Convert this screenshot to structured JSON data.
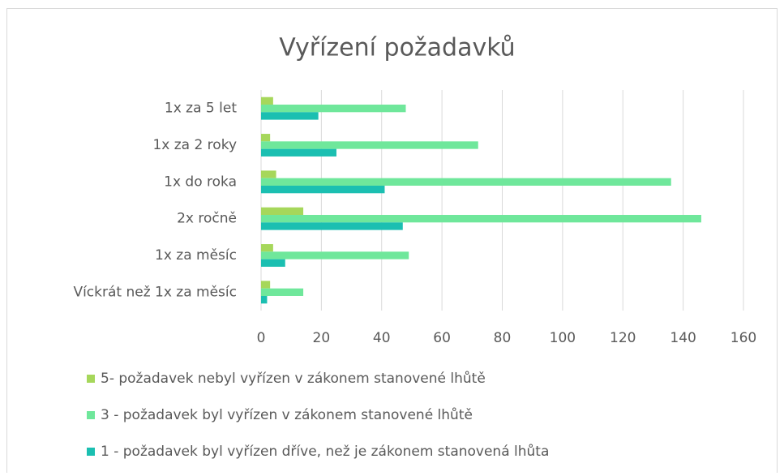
{
  "chart_data": {
    "type": "bar",
    "orientation": "horizontal",
    "title": "Vyřízení požadavků",
    "categories": [
      "1x za 5 let",
      "1x za 2 roky",
      "1x do roka",
      "2x ročně",
      "1x za měsíc",
      "Víckrát než 1x za měsíc"
    ],
    "series": [
      {
        "name": "5- požadavek nebyl vyřízen v zákonem stanovené lhůtě",
        "color": "#a6d75b",
        "values": [
          4,
          3,
          5,
          14,
          4,
          3
        ]
      },
      {
        "name": "3 - požadavek byl vyřízen v zákonem stanovené lhůtě",
        "color": "#6fe79b",
        "values": [
          48,
          72,
          136,
          146,
          49,
          14
        ]
      },
      {
        "name": "1 - požadavek byl vyřízen dříve, než je zákonem stanovená lhůta",
        "color": "#1bbfb1",
        "values": [
          19,
          25,
          41,
          47,
          8,
          2
        ]
      }
    ],
    "xlim": [
      0,
      160
    ],
    "xticks": [
      0,
      20,
      40,
      60,
      80,
      100,
      120,
      140,
      160
    ],
    "grid": true,
    "legend": "bottom"
  }
}
